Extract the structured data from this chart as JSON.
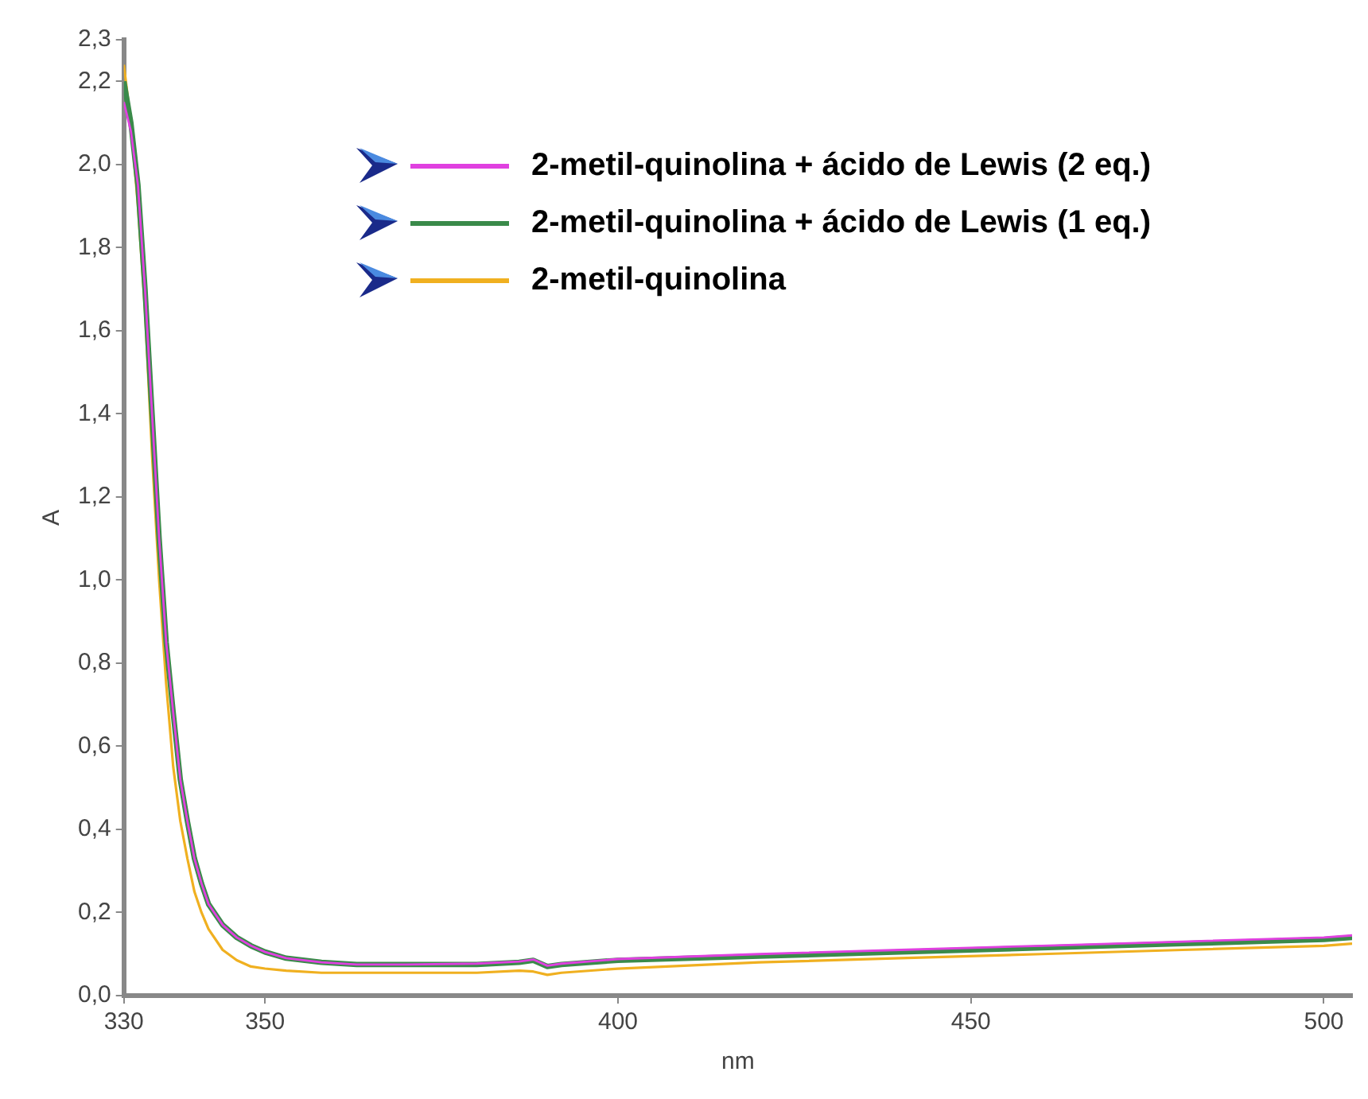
{
  "chart_data": {
    "type": "line",
    "xlabel": "nm",
    "ylabel": "A",
    "xlim": [
      330,
      504
    ],
    "xticks": [
      330,
      350,
      400,
      450,
      500
    ],
    "ylim": [
      0,
      2.3
    ],
    "yticks": [
      {
        "value": 0,
        "label": "0,0"
      },
      {
        "value": 0.2,
        "label": "0,2"
      },
      {
        "value": 0.4,
        "label": "0,4"
      },
      {
        "value": 0.6,
        "label": "0,6"
      },
      {
        "value": 0.8,
        "label": "0,8"
      },
      {
        "value": 1.0,
        "label": "1,0"
      },
      {
        "value": 1.2,
        "label": "1,2"
      },
      {
        "value": 1.4,
        "label": "1,4"
      },
      {
        "value": 1.6,
        "label": "1,6"
      },
      {
        "value": 1.8,
        "label": "1,8"
      },
      {
        "value": 2.0,
        "label": "2,0"
      },
      {
        "value": 2.2,
        "label": "2,2"
      },
      {
        "value": 2.3,
        "label": "2,3"
      }
    ],
    "grid": false,
    "legend": "top right",
    "marker": "none",
    "line_style": "solid",
    "x": [
      330,
      331,
      332,
      333,
      334,
      335,
      336,
      337,
      338,
      339,
      340,
      341,
      342,
      344,
      346,
      348,
      350,
      353,
      358,
      363,
      370,
      380,
      386,
      388,
      390,
      392,
      400,
      420,
      440,
      460,
      480,
      500,
      504
    ],
    "series": [
      {
        "name": "2-metil-quinolina + ácido de Lewis (2 eq.)",
        "color": "#e040e0",
        "values": [
          2.15,
          2.08,
          1.95,
          1.7,
          1.4,
          1.1,
          0.85,
          0.68,
          0.52,
          0.42,
          0.33,
          0.27,
          0.22,
          0.17,
          0.14,
          0.12,
          0.105,
          0.09,
          0.08,
          0.075,
          0.075,
          0.077,
          0.082,
          0.087,
          0.072,
          0.077,
          0.088,
          0.1,
          0.11,
          0.12,
          0.13,
          0.14,
          0.145
        ]
      },
      {
        "name": "2-metil-quinolina + ácido de Lewis (1 eq.)",
        "color": "#3a8a4a",
        "values": [
          2.2,
          2.1,
          1.95,
          1.7,
          1.4,
          1.1,
          0.85,
          0.68,
          0.52,
          0.42,
          0.33,
          0.27,
          0.22,
          0.17,
          0.14,
          0.12,
          0.105,
          0.09,
          0.08,
          0.075,
          0.075,
          0.075,
          0.08,
          0.085,
          0.07,
          0.075,
          0.085,
          0.095,
          0.105,
          0.115,
          0.125,
          0.135,
          0.14
        ]
      },
      {
        "name": "2-metil-quinolina",
        "color": "#f0b020",
        "values": [
          2.24,
          2.1,
          1.9,
          1.65,
          1.3,
          1.0,
          0.75,
          0.55,
          0.42,
          0.33,
          0.25,
          0.2,
          0.16,
          0.11,
          0.085,
          0.07,
          0.065,
          0.06,
          0.055,
          0.055,
          0.055,
          0.055,
          0.06,
          0.058,
          0.05,
          0.055,
          0.065,
          0.08,
          0.09,
          0.1,
          0.11,
          0.12,
          0.125
        ]
      }
    ]
  }
}
